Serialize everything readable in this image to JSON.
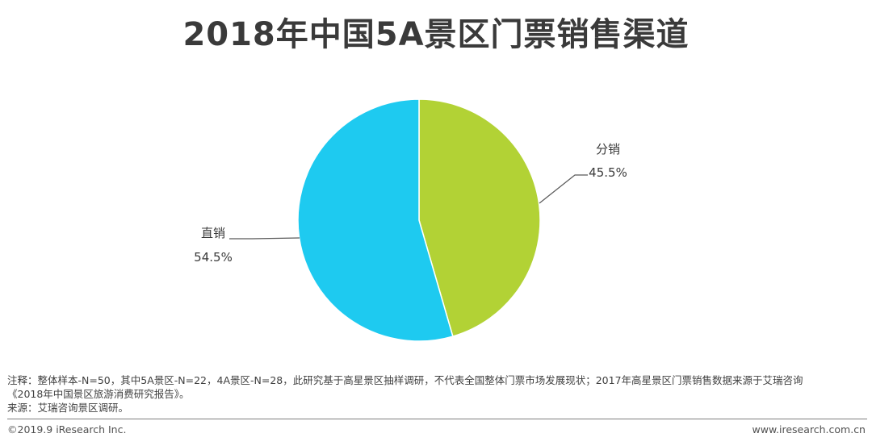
{
  "title": "2018年中国5A景区门票销售渠道",
  "chart_data": {
    "type": "pie",
    "slices": [
      {
        "label": "分销",
        "value": 45.5,
        "display": "45.5%",
        "color": "#b2d235"
      },
      {
        "label": "直销",
        "value": 54.5,
        "display": "54.5%",
        "color": "#1ecaf0"
      }
    ]
  },
  "notes": {
    "line1": "注释：整体样本-N=50，其中5A景区-N=22，4A景区-N=28，此研究基于高星景区抽样调研，不代表全国整体门票市场发展现状；2017年高星景区门票销售数据来源于艾瑞咨询",
    "line2": "《2018年中国景区旅游消费研究报告》。",
    "source": "来源：艾瑞咨询景区调研。"
  },
  "footer": {
    "copyright": "©2019.9 iResearch Inc.",
    "website": "www.iresearch.com.cn"
  }
}
